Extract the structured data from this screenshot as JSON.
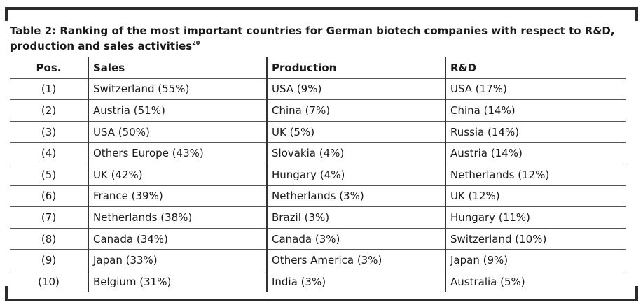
{
  "caption": {
    "text": "Table 2: Ranking of the most important countries for German biotech companies with respect to R&D, production and sales activities",
    "footnote": "20"
  },
  "table": {
    "headers": {
      "pos": "Pos.",
      "sales": "Sales",
      "production": "Production",
      "rd": "R&D"
    },
    "rows": [
      {
        "pos": "(1)",
        "sales": "Switzerland (55%)",
        "production": "USA (9%)",
        "rd": "USA (17%)"
      },
      {
        "pos": "(2)",
        "sales": "Austria (51%)",
        "production": "China (7%)",
        "rd": "China (14%)"
      },
      {
        "pos": "(3)",
        "sales": "USA (50%)",
        "production": "UK (5%)",
        "rd": "Russia (14%)"
      },
      {
        "pos": "(4)",
        "sales": "Others Europe (43%)",
        "production": "Slovakia (4%)",
        "rd": "Austria (14%)"
      },
      {
        "pos": "(5)",
        "sales": "UK (42%)",
        "production": "Hungary (4%)",
        "rd": "Netherlands (12%)"
      },
      {
        "pos": "(6)",
        "sales": "France (39%)",
        "production": "Netherlands (3%)",
        "rd": "UK (12%)"
      },
      {
        "pos": "(7)",
        "sales": "Netherlands (38%)",
        "production": "Brazil (3%)",
        "rd": "Hungary (11%)"
      },
      {
        "pos": "(8)",
        "sales": "Canada (34%)",
        "production": "Canada (3%)",
        "rd": "Switzerland (10%)"
      },
      {
        "pos": "(9)",
        "sales": "Japan (33%)",
        "production": "Others America (3%)",
        "rd": "Japan (9%)"
      },
      {
        "pos": "(10)",
        "sales": "Belgium (31%)",
        "production": "India (3%)",
        "rd": "Australia (5%)"
      }
    ]
  }
}
